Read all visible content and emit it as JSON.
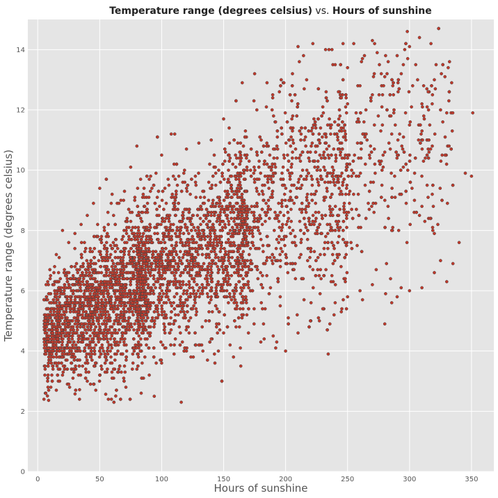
{
  "chart_data": {
    "type": "scatter",
    "title": {
      "part1": "Temperature range (degrees celsius)",
      "connector": " vs. ",
      "part2": "Hours of sunshine"
    },
    "xlabel": "Hours of sunshine",
    "ylabel": "Temperature range (degrees celsius)",
    "xlim": [
      -8,
      368
    ],
    "ylim": [
      0,
      15
    ],
    "xticks": [
      0,
      50,
      100,
      150,
      200,
      250,
      300,
      350
    ],
    "yticks": [
      0,
      2,
      4,
      6,
      8,
      10,
      12,
      14
    ],
    "grid": true,
    "point_color": "#c0392b",
    "point_edge_color": "#444444",
    "background_color": "#e5e5e5",
    "series": [
      {
        "points": [
          [
            5,
            2.4
          ],
          [
            57,
            2.4
          ],
          [
            8,
            3.0
          ],
          [
            15,
            2.7
          ],
          [
            12,
            3.5
          ],
          [
            20,
            3.2
          ],
          [
            25,
            2.9
          ],
          [
            30,
            3.8
          ],
          [
            40,
            3.0
          ],
          [
            50,
            3.2
          ],
          [
            60,
            3.1
          ],
          [
            70,
            3.5
          ],
          [
            80,
            3.4
          ],
          [
            90,
            3.2
          ],
          [
            100,
            3.6
          ],
          [
            110,
            3.9
          ],
          [
            120,
            4.0
          ],
          [
            130,
            4.2
          ],
          [
            140,
            4.4
          ],
          [
            150,
            4.6
          ],
          [
            160,
            4.8
          ],
          [
            170,
            4.6
          ],
          [
            180,
            4.3
          ],
          [
            190,
            4.5
          ],
          [
            200,
            4.0
          ],
          [
            210,
            4.6
          ],
          [
            220,
            5.0
          ],
          [
            230,
            5.4
          ],
          [
            240,
            5.6
          ],
          [
            250,
            5.8
          ],
          [
            260,
            6.0
          ],
          [
            270,
            6.2
          ],
          [
            280,
            4.9
          ],
          [
            290,
            5.8
          ],
          [
            300,
            6.0
          ],
          [
            310,
            6.1
          ],
          [
            320,
            6.6
          ],
          [
            325,
            7.0
          ],
          [
            330,
            6.3
          ],
          [
            335,
            6.9
          ],
          [
            340,
            7.6
          ],
          [
            345,
            9.9
          ],
          [
            350,
            9.8
          ],
          [
            351,
            11.9
          ],
          [
            300,
            14.1
          ],
          [
            308,
            14.4
          ],
          [
            270,
            14.3
          ],
          [
            255,
            14.2
          ],
          [
            235,
            14.0
          ],
          [
            222,
            14.2
          ],
          [
            210,
            14.1
          ],
          [
            240,
            13.5
          ],
          [
            250,
            13.4
          ],
          [
            262,
            13.7
          ],
          [
            280,
            13.1
          ],
          [
            290,
            13.8
          ],
          [
            295,
            13.5
          ],
          [
            305,
            13.5
          ],
          [
            315,
            12.6
          ],
          [
            320,
            13.0
          ],
          [
            325,
            12.0
          ],
          [
            330,
            11.9
          ],
          [
            310,
            12.2
          ],
          [
            300,
            11.5
          ],
          [
            285,
            11.8
          ],
          [
            270,
            12.5
          ],
          [
            260,
            12.8
          ],
          [
            245,
            12.4
          ],
          [
            230,
            12.1
          ],
          [
            215,
            12.7
          ],
          [
            205,
            12.3
          ],
          [
            195,
            12.6
          ],
          [
            185,
            12.9
          ],
          [
            175,
            13.2
          ],
          [
            165,
            12.9
          ],
          [
            160,
            12.3
          ],
          [
            150,
            11.7
          ],
          [
            140,
            11.0
          ],
          [
            130,
            10.9
          ],
          [
            120,
            10.7
          ],
          [
            110,
            10.2
          ],
          [
            100,
            10.5
          ],
          [
            90,
            9.7
          ],
          [
            80,
            10.8
          ],
          [
            75,
            10.1
          ],
          [
            70,
            9.3
          ],
          [
            60,
            9.2
          ],
          [
            50,
            9.4
          ],
          [
            45,
            8.9
          ],
          [
            40,
            8.5
          ],
          [
            35,
            8.2
          ],
          [
            30,
            7.9
          ],
          [
            25,
            7.6
          ],
          [
            20,
            8.0
          ],
          [
            15,
            7.2
          ],
          [
            10,
            6.4
          ],
          [
            5,
            5.7
          ],
          [
            8,
            5.2
          ],
          [
            12,
            4.6
          ],
          [
            18,
            4.1
          ],
          [
            22,
            5.0
          ],
          [
            28,
            5.4
          ],
          [
            35,
            5.8
          ],
          [
            42,
            6.2
          ],
          [
            50,
            6.0
          ],
          [
            55,
            5.5
          ],
          [
            62,
            6.5
          ],
          [
            70,
            6.8
          ],
          [
            78,
            7.0
          ],
          [
            85,
            7.3
          ],
          [
            92,
            7.6
          ],
          [
            100,
            7.2
          ],
          [
            108,
            7.8
          ],
          [
            115,
            8.1
          ],
          [
            122,
            8.4
          ],
          [
            130,
            8.0
          ],
          [
            138,
            8.6
          ],
          [
            145,
            8.9
          ],
          [
            152,
            9.1
          ],
          [
            160,
            8.7
          ],
          [
            168,
            9.3
          ],
          [
            175,
            9.6
          ],
          [
            182,
            9.0
          ],
          [
            190,
            9.8
          ],
          [
            198,
            10.1
          ],
          [
            205,
            9.5
          ],
          [
            212,
            10.3
          ],
          [
            220,
            10.6
          ],
          [
            228,
            10.0
          ],
          [
            235,
            10.8
          ],
          [
            242,
            11.1
          ],
          [
            250,
            10.4
          ],
          [
            258,
            10.9
          ],
          [
            265,
            11.2
          ],
          [
            272,
            10.2
          ],
          [
            280,
            10.6
          ],
          [
            288,
            9.8
          ],
          [
            295,
            10.1
          ],
          [
            302,
            9.4
          ],
          [
            310,
            8.8
          ]
        ]
      }
    ]
  }
}
